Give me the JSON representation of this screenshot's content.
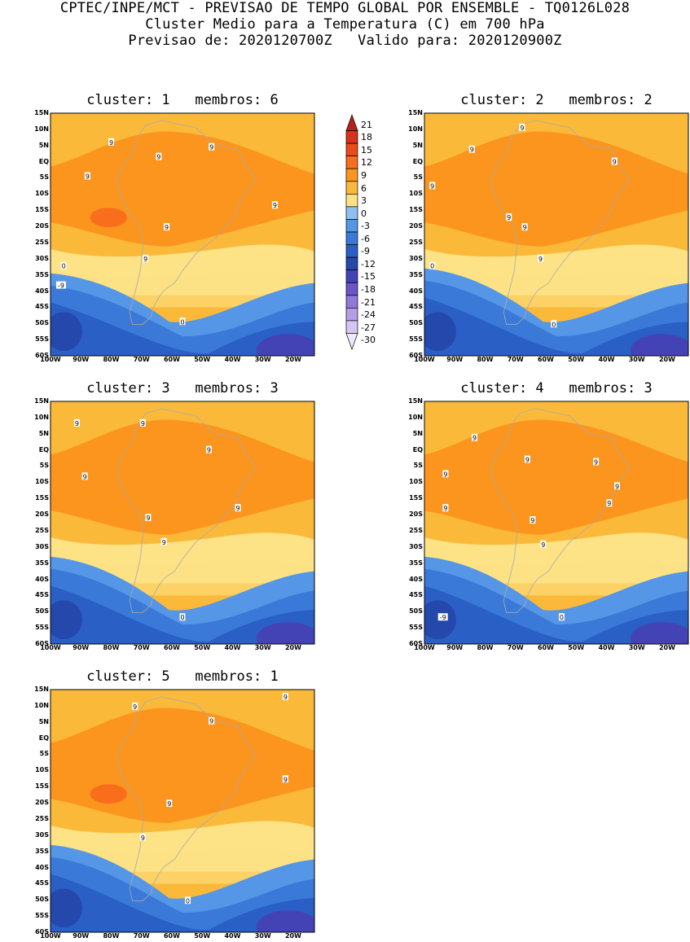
{
  "header": {
    "line1": "CPTEC/INPE/MCT - PREVISAO DE TEMPO GLOBAL POR ENSEMBLE - TQ0126L028",
    "line2": "Cluster Medio para a Temperatura (C) em 700 hPa",
    "line3": "Previsao de: 2020120700Z   Valido para: 2020120900Z"
  },
  "chart_data": {
    "type": "heatmap",
    "variable": "Temperatura (C) em 700 hPa",
    "lon_range": [
      -100,
      -13
    ],
    "lat_range": [
      -60,
      15
    ],
    "x_ticks": [
      "100W",
      "90W",
      "80W",
      "70W",
      "60W",
      "50W",
      "40W",
      "30W",
      "20W"
    ],
    "y_ticks": [
      "15N",
      "10N",
      "5N",
      "EQ",
      "5S",
      "10S",
      "15S",
      "20S",
      "25S",
      "30S",
      "35S",
      "40S",
      "45S",
      "50S",
      "55S",
      "60S"
    ],
    "colorbar": {
      "labels": [
        "21",
        "18",
        "15",
        "12",
        "9",
        "6",
        "3",
        "0",
        "-3",
        "-6",
        "-9",
        "-12",
        "-15",
        "-18",
        "-21",
        "-24",
        "-27",
        "-30"
      ],
      "colors": [
        "#b5201b",
        "#d6321d",
        "#ec4a19",
        "#f96e1b",
        "#fb951e",
        "#fbb93a",
        "#fde286",
        "#8ec0ef",
        "#5596e6",
        "#3a79d7",
        "#2a5fc5",
        "#2548ad",
        "#4443b6",
        "#6a56c8",
        "#8f79d9",
        "#b49fe6",
        "#d4c6f2",
        "#efe9fb"
      ]
    },
    "panels": [
      {
        "title": "cluster: 1   membros: 6",
        "contour_labels": [
          "9",
          "9",
          "9",
          "9",
          "9",
          "9",
          "9",
          "0",
          "0",
          "-9"
        ]
      },
      {
        "title": "cluster: 2   membros: 2",
        "contour_labels": [
          "9",
          "9",
          "9",
          "9",
          "9",
          "9",
          "9",
          "0",
          "0"
        ]
      },
      {
        "title": "cluster: 3   membros: 3",
        "contour_labels": [
          "9",
          "9",
          "9",
          "9",
          "9",
          "9",
          "9",
          "0"
        ]
      },
      {
        "title": "cluster: 4   membros: 3",
        "contour_labels": [
          "9",
          "9",
          "9",
          "9",
          "9",
          "9",
          "9",
          "9",
          "9",
          "0",
          "-9"
        ]
      },
      {
        "title": "cluster: 5   membros: 1",
        "contour_labels": [
          "9",
          "9",
          "9",
          "9",
          "9",
          "9",
          "0"
        ]
      }
    ]
  }
}
